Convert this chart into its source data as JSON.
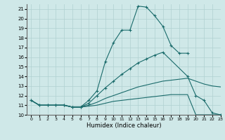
{
  "xlabel": "Humidex (Indice chaleur)",
  "ylabel": "",
  "xlim": [
    -0.5,
    23
  ],
  "ylim": [
    10,
    21.5
  ],
  "yticks": [
    10,
    11,
    12,
    13,
    14,
    15,
    16,
    17,
    18,
    19,
    20,
    21
  ],
  "xticks": [
    0,
    1,
    2,
    3,
    4,
    5,
    6,
    7,
    8,
    9,
    10,
    11,
    12,
    13,
    14,
    15,
    16,
    17,
    18,
    19,
    20,
    21,
    22,
    23
  ],
  "bg_color": "#cfe8e8",
  "line_color": "#1a6b6b",
  "grid_color": "#b0d0d0",
  "line1_x": [
    0,
    1,
    2,
    3,
    4,
    5,
    6,
    7,
    8,
    9,
    10,
    11,
    12,
    13,
    14,
    15,
    16,
    17,
    18,
    19
  ],
  "line1_y": [
    11.5,
    11.0,
    11.0,
    11.0,
    11.0,
    10.8,
    10.8,
    11.5,
    12.5,
    15.5,
    17.5,
    18.8,
    18.8,
    21.3,
    21.2,
    20.3,
    19.2,
    17.2,
    16.4,
    16.4
  ],
  "line2_x": [
    0,
    1,
    2,
    3,
    4,
    5,
    6,
    7,
    8,
    9,
    10,
    11,
    12,
    13,
    14,
    15,
    16,
    19,
    20,
    21,
    22,
    23
  ],
  "line2_y": [
    11.5,
    11.0,
    11.0,
    11.0,
    11.0,
    10.8,
    10.8,
    11.2,
    12.0,
    12.8,
    13.5,
    14.2,
    14.8,
    15.4,
    15.8,
    16.2,
    16.5,
    14.0,
    12.0,
    11.5,
    10.2,
    10.0
  ],
  "line3_x": [
    0,
    1,
    2,
    3,
    4,
    5,
    6,
    7,
    8,
    9,
    10,
    11,
    12,
    13,
    14,
    15,
    16,
    17,
    18,
    19,
    20,
    21,
    22,
    23
  ],
  "line3_y": [
    11.5,
    11.0,
    11.0,
    11.0,
    11.0,
    10.8,
    10.8,
    11.0,
    11.3,
    11.7,
    12.0,
    12.3,
    12.6,
    12.9,
    13.1,
    13.3,
    13.5,
    13.6,
    13.7,
    13.8,
    13.5,
    13.2,
    13.0,
    12.9
  ],
  "line4_x": [
    0,
    1,
    2,
    3,
    4,
    5,
    6,
    7,
    8,
    9,
    10,
    11,
    12,
    13,
    14,
    15,
    16,
    17,
    18,
    19,
    20,
    21,
    22,
    23
  ],
  "line4_y": [
    11.5,
    11.0,
    11.0,
    11.0,
    11.0,
    10.8,
    10.8,
    10.9,
    11.0,
    11.2,
    11.4,
    11.5,
    11.6,
    11.7,
    11.8,
    11.9,
    12.0,
    12.1,
    12.1,
    12.1,
    10.0,
    10.0,
    10.0,
    10.0
  ]
}
